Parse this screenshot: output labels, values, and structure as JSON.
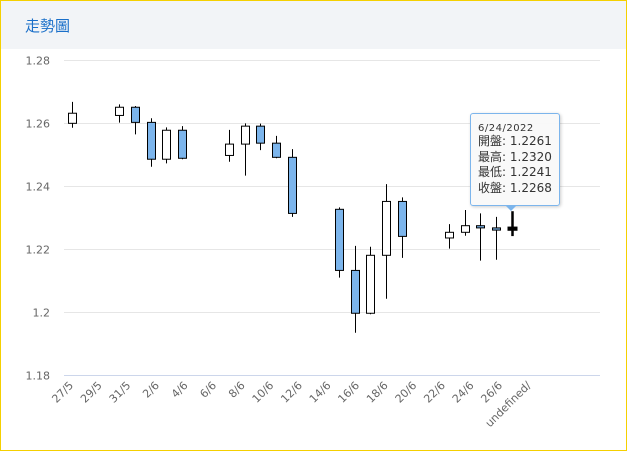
{
  "header": {
    "title": "走勢圖"
  },
  "colors": {
    "up": "#ffffff",
    "down": "#7cb5ec",
    "hover": "#000000",
    "border": "#f5d000",
    "title": "#1a6fc9"
  },
  "tooltip": {
    "date": "6/24/2022",
    "rows": [
      {
        "label": "開盤",
        "value": "1.2261"
      },
      {
        "label": "最高",
        "value": "1.2320"
      },
      {
        "label": "最低",
        "value": "1.2241"
      },
      {
        "label": "收盤",
        "value": "1.2268"
      }
    ]
  },
  "chart_data": {
    "type": "candlestick",
    "title": "走勢圖",
    "ylim": [
      1.18,
      1.28
    ],
    "yticks": [
      "1.28",
      "1.26",
      "1.24",
      "1.22",
      "1.2",
      "1.18"
    ],
    "ytick_values": [
      1.28,
      1.26,
      1.24,
      1.22,
      1.2,
      1.18
    ],
    "xticks": [
      "27/5",
      "29/5",
      "31/5",
      "2/6",
      "4/6",
      "6/6",
      "8/6",
      "10/6",
      "12/6",
      "14/6",
      "16/6",
      "18/6",
      "20/6",
      "22/6",
      "24/6",
      "26/6",
      "undefined/"
    ],
    "grid": true,
    "hovered": "24/6",
    "series": [
      {
        "date": "27/5",
        "day": 0,
        "open": 1.2599,
        "high": 1.2667,
        "low": 1.2585,
        "close": 1.2631
      },
      {
        "date": "30/5",
        "day": 3,
        "open": 1.2624,
        "high": 1.2659,
        "low": 1.2601,
        "close": 1.265
      },
      {
        "date": "31/5",
        "day": 4,
        "open": 1.265,
        "high": 1.2654,
        "low": 1.2564,
        "close": 1.2602
      },
      {
        "date": "1/6",
        "day": 5,
        "open": 1.2602,
        "high": 1.2615,
        "low": 1.2461,
        "close": 1.2485
      },
      {
        "date": "2/6",
        "day": 6,
        "open": 1.2485,
        "high": 1.2586,
        "low": 1.2472,
        "close": 1.2577
      },
      {
        "date": "3/6",
        "day": 7,
        "open": 1.2577,
        "high": 1.259,
        "low": 1.2485,
        "close": 1.2488
      },
      {
        "date": "6/6",
        "day": 10,
        "open": 1.2497,
        "high": 1.2578,
        "low": 1.2477,
        "close": 1.2533
      },
      {
        "date": "7/6",
        "day": 11,
        "open": 1.2533,
        "high": 1.2599,
        "low": 1.2433,
        "close": 1.259
      },
      {
        "date": "8/6",
        "day": 12,
        "open": 1.259,
        "high": 1.2598,
        "low": 1.2514,
        "close": 1.2536
      },
      {
        "date": "9/6",
        "day": 13,
        "open": 1.2536,
        "high": 1.2559,
        "low": 1.2488,
        "close": 1.2491
      },
      {
        "date": "10/6",
        "day": 14,
        "open": 1.2491,
        "high": 1.2517,
        "low": 1.2302,
        "close": 1.2313
      },
      {
        "date": "13/6",
        "day": 17,
        "open": 1.2326,
        "high": 1.2332,
        "low": 1.2109,
        "close": 1.2132
      },
      {
        "date": "14/6",
        "day": 18,
        "open": 1.2132,
        "high": 1.221,
        "low": 1.1934,
        "close": 1.1996
      },
      {
        "date": "15/6",
        "day": 19,
        "open": 1.1996,
        "high": 1.2207,
        "low": 1.1993,
        "close": 1.218
      },
      {
        "date": "16/6",
        "day": 20,
        "open": 1.218,
        "high": 1.2406,
        "low": 1.2042,
        "close": 1.2351
      },
      {
        "date": "17/6",
        "day": 21,
        "open": 1.2351,
        "high": 1.2364,
        "low": 1.2172,
        "close": 1.224
      },
      {
        "date": "20/6",
        "day": 24,
        "open": 1.2235,
        "high": 1.2279,
        "low": 1.2201,
        "close": 1.2253
      },
      {
        "date": "21/6",
        "day": 25,
        "open": 1.2253,
        "high": 1.2324,
        "low": 1.2242,
        "close": 1.2274
      },
      {
        "date": "22/6",
        "day": 26,
        "open": 1.2274,
        "high": 1.2313,
        "low": 1.2163,
        "close": 1.2267
      },
      {
        "date": "23/6",
        "day": 27,
        "open": 1.2267,
        "high": 1.2302,
        "low": 1.2166,
        "close": 1.226
      },
      {
        "date": "24/6",
        "day": 28,
        "open": 1.2261,
        "high": 1.232,
        "low": 1.2241,
        "close": 1.2268
      }
    ]
  }
}
